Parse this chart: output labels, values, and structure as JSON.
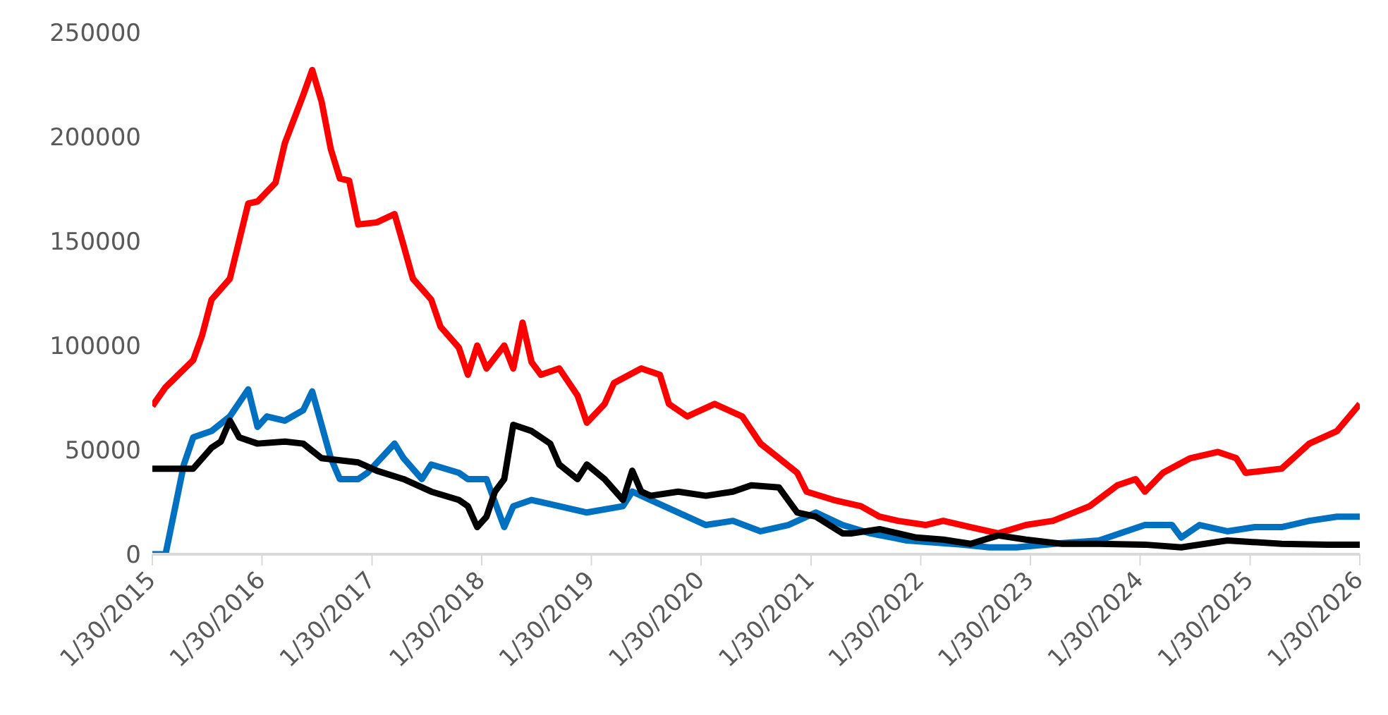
{
  "chart_data": {
    "type": "line",
    "xlim": [
      "2015-01-30",
      "2026-01-30"
    ],
    "xticks": [
      {
        "value": "2015-01-30",
        "label": "1/30/2015"
      },
      {
        "value": "2016-01-30",
        "label": "1/30/2016"
      },
      {
        "value": "2017-01-30",
        "label": "1/30/2017"
      },
      {
        "value": "2018-01-30",
        "label": "1/30/2018"
      },
      {
        "value": "2019-01-30",
        "label": "1/30/2019"
      },
      {
        "value": "2020-01-30",
        "label": "1/30/2020"
      },
      {
        "value": "2021-01-30",
        "label": "1/30/2021"
      },
      {
        "value": "2022-01-30",
        "label": "1/30/2022"
      },
      {
        "value": "2023-01-30",
        "label": "1/30/2023"
      },
      {
        "value": "2024-01-30",
        "label": "1/30/2024"
      },
      {
        "value": "2025-01-30",
        "label": "1/30/2025"
      },
      {
        "value": "2026-01-30",
        "label": "1/30/2026"
      }
    ],
    "ylim": [
      0,
      250000
    ],
    "yticks": [
      0,
      50000,
      100000,
      150000,
      200000,
      250000
    ],
    "grid": false,
    "legend": false,
    "marker": "none",
    "line_style": "solid",
    "series": [
      {
        "color": "#ff0000",
        "x": [
          "2015-01-30",
          "2015-03",
          "2015-06",
          "2015-07",
          "2015-08",
          "2015-10",
          "2015-12",
          "2016-01",
          "2016-03",
          "2016-04",
          "2016-06",
          "2016-07",
          "2016-08",
          "2016-09",
          "2016-10",
          "2016-11",
          "2016-12",
          "2017-02",
          "2017-04",
          "2017-05",
          "2017-06",
          "2017-08",
          "2017-09",
          "2017-11",
          "2017-12",
          "2018-01",
          "2018-02",
          "2018-04",
          "2018-05",
          "2018-06",
          "2018-07",
          "2018-08",
          "2018-10",
          "2018-12",
          "2019-01",
          "2019-03",
          "2019-04",
          "2019-07",
          "2019-09",
          "2019-10",
          "2019-12",
          "2020-03",
          "2020-06",
          "2020-08",
          "2020-10",
          "2020-12",
          "2021-01",
          "2021-04",
          "2021-07",
          "2021-09",
          "2021-11",
          "2022-02",
          "2022-04",
          "2022-07",
          "2022-10",
          "2023-01",
          "2023-04",
          "2023-08",
          "2023-11",
          "2024-01",
          "2024-02",
          "2024-04",
          "2024-07",
          "2024-10",
          "2024-12",
          "2025-01",
          "2025-05",
          "2025-08",
          "2025-11",
          "2026-01-30"
        ],
        "values": [
          71000,
          80000,
          93000,
          105000,
          122000,
          132000,
          168000,
          169000,
          178000,
          197000,
          220000,
          232000,
          217000,
          194000,
          180000,
          179000,
          158000,
          159000,
          163000,
          148000,
          132000,
          122000,
          109000,
          99000,
          86000,
          100000,
          89000,
          100000,
          89000,
          111000,
          92000,
          86000,
          89000,
          76000,
          63000,
          72000,
          82000,
          89000,
          86000,
          72000,
          66000,
          72000,
          66000,
          53000,
          46000,
          39000,
          30000,
          26000,
          23000,
          18000,
          16000,
          14000,
          16000,
          13000,
          10000,
          14000,
          16000,
          23000,
          33000,
          36000,
          30000,
          39000,
          46000,
          49000,
          46000,
          39000,
          41000,
          53000,
          59000,
          72000
        ]
      },
      {
        "color": "#0070c0",
        "x": [
          "2015-01-30",
          "2015-03",
          "2015-05",
          "2015-06",
          "2015-08",
          "2015-10",
          "2015-12",
          "2016-01",
          "2016-02",
          "2016-04",
          "2016-06",
          "2016-07",
          "2016-08",
          "2016-09",
          "2016-10",
          "2016-12",
          "2017-01",
          "2017-04",
          "2017-05",
          "2017-07",
          "2017-08",
          "2017-11",
          "2017-12",
          "2018-02",
          "2018-04",
          "2018-05",
          "2018-07",
          "2018-10",
          "2019-01",
          "2019-05",
          "2019-06",
          "2019-08",
          "2019-11",
          "2020-02",
          "2020-05",
          "2020-08",
          "2020-11",
          "2021-02",
          "2021-05",
          "2021-08",
          "2021-12",
          "2022-06",
          "2022-09",
          "2022-12",
          "2023-05",
          "2023-09",
          "2024-02",
          "2024-05",
          "2024-06",
          "2024-08",
          "2024-11",
          "2025-02",
          "2025-05",
          "2025-08",
          "2025-11",
          "2026-01-30"
        ],
        "values": [
          0,
          0,
          43000,
          56000,
          59000,
          66000,
          79000,
          61000,
          66000,
          64000,
          69000,
          78000,
          62000,
          46000,
          36000,
          36000,
          39000,
          53000,
          46000,
          36000,
          43000,
          39000,
          36000,
          36000,
          13000,
          23000,
          26000,
          23000,
          20000,
          23000,
          30000,
          26000,
          20000,
          14000,
          16000,
          11000,
          14000,
          20000,
          14000,
          10000,
          6600,
          4600,
          3300,
          3300,
          5300,
          6600,
          14000,
          14000,
          8000,
          14000,
          11000,
          13000,
          13000,
          16000,
          18000,
          18000
        ]
      },
      {
        "color": "#000000",
        "x": [
          "2015-01-30",
          "2015-06",
          "2015-08",
          "2015-09",
          "2015-10",
          "2015-11",
          "2016-01",
          "2016-04",
          "2016-06",
          "2016-08",
          "2016-10",
          "2016-12",
          "2017-02",
          "2017-05",
          "2017-08",
          "2017-11",
          "2017-12",
          "2018-01",
          "2018-02",
          "2018-03",
          "2018-04",
          "2018-05",
          "2018-07",
          "2018-09",
          "2018-10",
          "2018-12",
          "2019-01",
          "2019-03",
          "2019-05",
          "2019-06",
          "2019-07",
          "2019-08",
          "2019-11",
          "2020-02",
          "2020-05",
          "2020-07",
          "2020-10",
          "2020-12",
          "2021-02",
          "2021-05",
          "2021-06",
          "2021-09",
          "2022-01",
          "2022-04",
          "2022-07",
          "2022-10",
          "2023-01",
          "2023-05",
          "2023-09",
          "2024-02",
          "2024-06",
          "2024-11",
          "2025-05",
          "2025-10",
          "2026-01-30"
        ],
        "values": [
          41000,
          41000,
          51000,
          54000,
          64000,
          56000,
          53000,
          54000,
          53000,
          46000,
          45000,
          44000,
          40000,
          36000,
          30000,
          26000,
          23000,
          13000,
          18000,
          30000,
          36000,
          62000,
          59000,
          53000,
          43000,
          36000,
          43000,
          36000,
          26000,
          40000,
          30000,
          28000,
          30000,
          28000,
          30000,
          33000,
          32000,
          20000,
          18000,
          10000,
          10000,
          12000,
          8000,
          7000,
          5000,
          9000,
          7000,
          5000,
          5000,
          4600,
          3300,
          6600,
          5000,
          4600,
          4600
        ]
      }
    ]
  }
}
